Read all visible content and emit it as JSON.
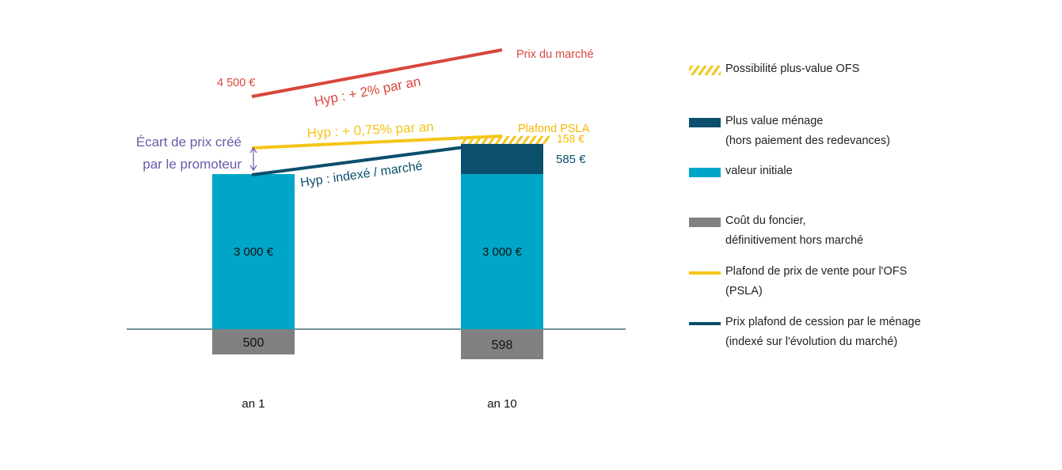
{
  "chart_data": {
    "type": "bar",
    "categories": [
      "an 1",
      "an 10"
    ],
    "series": [
      {
        "name": "Coût du foncier, définitivement hors marché",
        "values": [
          500,
          598
        ],
        "value_labels": [
          "500",
          "598"
        ],
        "color": "#808080"
      },
      {
        "name": "valeur initiale",
        "values": [
          3000,
          3000
        ],
        "value_labels": [
          "3 000 €",
          "3 000 €"
        ],
        "color": "#00a6c7"
      },
      {
        "name": "Plus value ménage (hors paiement des redevances)",
        "values": [
          0,
          585
        ],
        "value_labels": [
          "",
          "585 €"
        ],
        "color": "#0b4f6c"
      },
      {
        "name": "Possibilité plus-value OFS",
        "values": [
          0,
          158
        ],
        "value_labels": [
          "",
          "158 €"
        ],
        "color": "#f5c518"
      }
    ],
    "lines": [
      {
        "name": "Prix du marché",
        "label": "Prix du marché",
        "start_label": "4 500 €",
        "hypothesis": "Hyp : + 2% par an",
        "values": [
          4500,
          5486
        ],
        "color": "#d9463b"
      },
      {
        "name": "Plafond de prix de vente pour l'OFS (PSLA)",
        "label": "Plafond PSLA",
        "hypothesis": "Hyp : + 0,75% par an",
        "values": [
          3250,
          3743
        ],
        "color": "#f5c518"
      },
      {
        "name": "Prix plafond de cession par le ménage (indexé sur l'évolution du marché)",
        "hypothesis": "Hyp : indexé / marché",
        "values": [
          3000,
          3585
        ],
        "color": "#0b4f6c"
      }
    ],
    "annotation": {
      "text": [
        "Écart de prix créé",
        "par le promoteur"
      ],
      "color": "#6a5aa8"
    },
    "ylim": [
      -650,
      5700
    ],
    "grid": false,
    "legend_position": "right"
  },
  "legend": {
    "items": [
      {
        "key": "hatch",
        "text": [
          "Possibilité plus-value OFS"
        ]
      },
      {
        "key": "dark",
        "text": [
          "Plus value ménage",
          "(hors paiement des redevances)"
        ]
      },
      {
        "key": "teal",
        "text": [
          "valeur initiale"
        ]
      },
      {
        "key": "grey",
        "text": [
          "Coût du foncier,",
          "définitivement hors marché"
        ]
      },
      {
        "key": "yellow-line",
        "text": [
          "Plafond de prix de vente pour l'OFS",
          "(PSLA)"
        ]
      },
      {
        "key": "dark-line",
        "text": [
          "Prix plafond de cession par le ménage",
          "(indexé sur l'évolution du marché)"
        ]
      }
    ]
  }
}
